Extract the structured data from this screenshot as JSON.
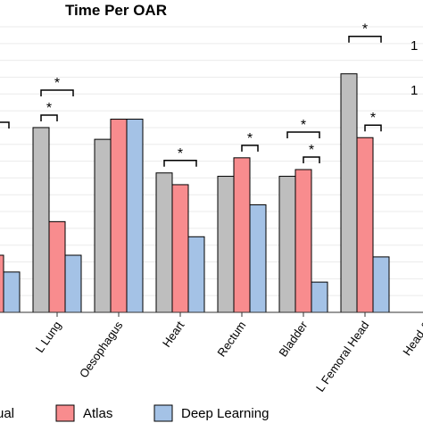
{
  "chart_data": {
    "type": "bar",
    "title": "Time Per OAR",
    "categories": [
      "L Lung",
      "Oesophagus",
      "Heart",
      "Rectum",
      "Bladder",
      "L Femoral Head"
    ],
    "partial_tick_labels": [
      "Head &"
    ],
    "partial_y_tick_labels": [
      "1",
      "1"
    ],
    "series": [
      {
        "name": "Manual",
        "legend_text": "ual",
        "color": "#bebebe",
        "values": [
          11.0,
          10.3,
          8.3,
          8.1,
          8.1,
          14.2
        ],
        "partial_left_value": 3.3
      },
      {
        "name": "Atlas",
        "legend_text": "Atlas",
        "color": "#f88c8e",
        "values": [
          5.4,
          11.5,
          7.6,
          9.2,
          8.5,
          10.4
        ],
        "partial_left_value": 3.4
      },
      {
        "name": "Deep Learning",
        "legend_text": "Deep Learning",
        "color": "#a4c2e6",
        "values": [
          3.4,
          11.5,
          4.5,
          6.4,
          1.8,
          3.3
        ],
        "partial_left_value": 2.4
      }
    ],
    "significance": [
      {
        "category": "L Lung",
        "from": "Manual",
        "to": "Atlas",
        "label": "*"
      },
      {
        "category": "L Lung",
        "from": "Manual",
        "to": "Deep Learning",
        "label": "*"
      },
      {
        "category": "Heart",
        "from": "Manual",
        "to": "Deep Learning",
        "label": "*"
      },
      {
        "category": "Rectum",
        "from": "Atlas",
        "to": "Deep Learning",
        "label": "*"
      },
      {
        "category": "Bladder",
        "from": "Atlas",
        "to": "Deep Learning",
        "label": "*"
      },
      {
        "category": "Bladder",
        "from": "Manual",
        "to": "Deep Learning",
        "label": "*"
      },
      {
        "category": "L Femoral Head",
        "from": "Atlas",
        "to": "Deep Learning",
        "label": "*"
      },
      {
        "category": "L Femoral Head",
        "from": "Manual",
        "to": "Deep Learning",
        "label": "*"
      }
    ],
    "ylim": [
      0,
      17
    ],
    "grid": true,
    "legend_position": "bottom"
  }
}
